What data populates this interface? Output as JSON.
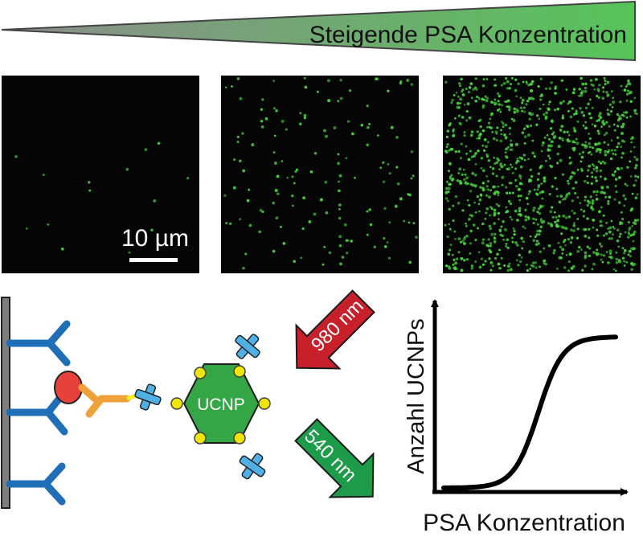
{
  "gradient_banner": {
    "label": "Steigende PSA Konzentration",
    "color_start": "#8c8c8c",
    "color_end": "#57c45a"
  },
  "micrographs": {
    "scale_bar_label": "10 µm",
    "background": "#050505",
    "dot_color": "#49d43f",
    "panels": [
      {
        "name": "low-concentration",
        "relative_density": "low"
      },
      {
        "name": "medium-concentration",
        "relative_density": "medium"
      },
      {
        "name": "high-concentration",
        "relative_density": "high"
      }
    ]
  },
  "schematic": {
    "ucnp_label": "UCNP",
    "excitation_label": "980 nm",
    "emission_label": "540 nm",
    "colors": {
      "surface": "#7f7f7f",
      "capture_antibody": "#1f6fb8",
      "antigen": "#e8413c",
      "detection_antibody": "#f0a23a",
      "linker": "#f6ee1c",
      "binder": "#4fb0e6",
      "ucnp": "#35a645",
      "ucnp_ligand": "#f2e600",
      "excitation_arrow": "#c8202b",
      "emission_arrow": "#1c9b48"
    }
  },
  "chart_data": {
    "type": "line",
    "xlabel": "PSA Konzentration",
    "ylabel": "Anzahl UCNPs",
    "curve": "sigmoid"
  }
}
